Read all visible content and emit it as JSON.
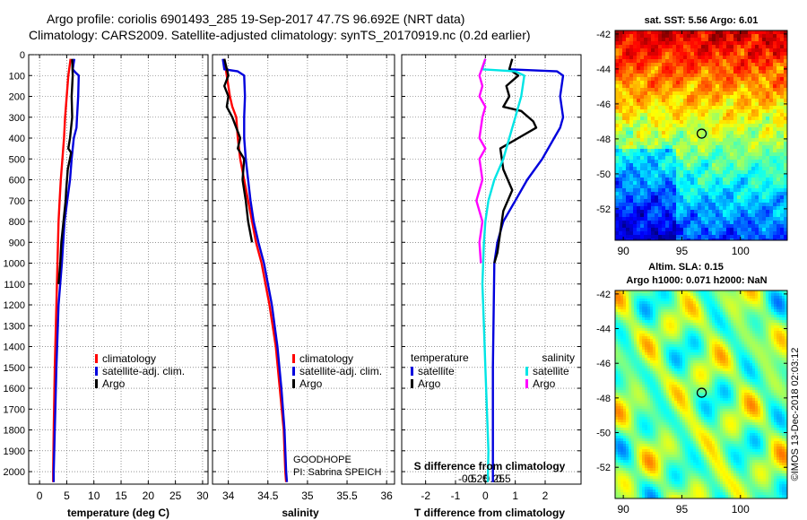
{
  "title": {
    "line1": "Argo profile: coriolis 6901493_285 19-Sep-2017 47.7S 96.692E (NRT data)",
    "line2": "Climatology: CARS2009. Satellite-adjusted climatology: synTS_20170919.nc (0.2d earlier)"
  },
  "colors": {
    "climatology": "#ff0000",
    "satellite": "#0000dd",
    "argo": "#000000",
    "sat_diff_salinity": "#00e5e5",
    "argo_diff_salinity": "#ff00ff"
  },
  "chart_data": [
    {
      "type": "line",
      "id": "temperature-panel",
      "xlabel": "temperature (deg C)",
      "ylabel": "",
      "xlim": [
        -2,
        31
      ],
      "ylim": [
        2060,
        0
      ],
      "xticks": [
        0,
        5,
        10,
        15,
        20,
        25,
        30
      ],
      "yticks": [
        0,
        100,
        200,
        300,
        400,
        500,
        600,
        700,
        800,
        900,
        1000,
        1100,
        1200,
        1300,
        1400,
        1500,
        1600,
        1700,
        1800,
        1900,
        2000
      ],
      "legend": [
        "climatology",
        "satellite-adj. clim.",
        "Argo"
      ],
      "series": [
        {
          "name": "climatology",
          "color": "#ff0000",
          "x": [
            5.7,
            5.3,
            5.0,
            4.7,
            4.5,
            4.2,
            3.9,
            3.7,
            3.5,
            3.3,
            3.1,
            2.8,
            2.6,
            2.5,
            2.5
          ],
          "y": [
            20,
            100,
            200,
            300,
            400,
            500,
            600,
            700,
            800,
            1000,
            1200,
            1500,
            1800,
            2000,
            2050
          ]
        },
        {
          "name": "satellite-adj. clim.",
          "color": "#0000dd",
          "x": [
            6.4,
            6.1,
            6.6,
            7.2,
            7.1,
            6.9,
            6.8,
            6.3,
            5.9,
            5.6,
            5.1,
            4.6,
            4.1,
            3.5,
            3.1,
            2.8,
            2.6,
            2.6
          ],
          "y": [
            20,
            70,
            85,
            100,
            200,
            300,
            350,
            400,
            500,
            600,
            700,
            800,
            1000,
            1200,
            1500,
            1800,
            2000,
            2050
          ]
        },
        {
          "name": "Argo",
          "color": "#000000",
          "x": [
            6.0,
            6.1,
            5.9,
            6.0,
            5.8,
            5.6,
            5.3,
            5.8,
            5.2,
            4.9,
            4.8,
            4.4,
            4.0,
            3.8,
            3.5
          ],
          "y": [
            20,
            100,
            200,
            300,
            350,
            400,
            450,
            470,
            550,
            650,
            700,
            800,
            900,
            1000,
            1100
          ]
        }
      ]
    },
    {
      "type": "line",
      "id": "salinity-panel",
      "xlabel": "salinity",
      "ylabel": "",
      "xlim": [
        33.8,
        36.1
      ],
      "ylim": [
        2060,
        0
      ],
      "xticks": [
        34,
        34.5,
        35,
        35.5,
        36
      ],
      "xtick_labels": [
        "34",
        "34.5",
        "35",
        "35.5",
        "36"
      ],
      "legend": [
        "climatology",
        "satellite-adj. clim.",
        "Argo"
      ],
      "annotations": [
        "GOODHOPE",
        "PI: Sabrina SPEICH"
      ],
      "series": [
        {
          "name": "climatology",
          "color": "#ff0000",
          "x": [
            33.95,
            33.98,
            34.02,
            34.05,
            34.1,
            34.12,
            34.15,
            34.2,
            34.25,
            34.3,
            34.35,
            34.42,
            34.52,
            34.6,
            34.65,
            34.7,
            34.72,
            34.73
          ],
          "y": [
            20,
            100,
            200,
            250,
            300,
            400,
            500,
            600,
            700,
            800,
            900,
            1000,
            1200,
            1400,
            1600,
            1800,
            2000,
            2050
          ]
        },
        {
          "name": "satellite-adj. clim.",
          "color": "#0000dd",
          "x": [
            33.93,
            33.95,
            34.12,
            34.2,
            34.21,
            34.2,
            34.2,
            34.22,
            34.25,
            34.28,
            34.32,
            34.38,
            34.45,
            34.55,
            34.62,
            34.67,
            34.71,
            34.73,
            34.74
          ],
          "y": [
            20,
            70,
            80,
            100,
            200,
            300,
            400,
            500,
            600,
            700,
            800,
            900,
            1000,
            1200,
            1400,
            1600,
            1800,
            2000,
            2050
          ]
        },
        {
          "name": "Argo",
          "color": "#000000",
          "x": [
            33.95,
            34.0,
            33.95,
            34.0,
            33.98,
            34.05,
            34.1,
            34.15,
            34.12,
            34.2,
            34.18,
            34.22,
            34.25,
            34.3
          ],
          "y": [
            20,
            100,
            150,
            200,
            250,
            300,
            350,
            400,
            450,
            500,
            600,
            700,
            800,
            900
          ]
        }
      ]
    },
    {
      "type": "line",
      "id": "difference-panel",
      "xlabel": "T difference from climatology",
      "xlabel_top": "S difference from climatology",
      "xlim": [
        -2.8,
        3.2
      ],
      "ylim": [
        2060,
        0
      ],
      "xticks": [
        -2,
        -1,
        0,
        1,
        2
      ],
      "xtick_labels": [
        "-2",
        "-1",
        "0",
        "1",
        "2"
      ],
      "s_xticks": [
        -0.5,
        -0.25,
        0,
        0.25,
        0.5
      ],
      "s_xtick_labels": [
        "-0.5",
        "-0.25",
        "0",
        "0.25",
        "0.5"
      ],
      "legend_temperature_title": "temperature",
      "legend_salinity_title": "salinity",
      "legend_temperature": [
        "satellite",
        "Argo"
      ],
      "legend_salinity": [
        "satellite",
        "Argo"
      ],
      "series": [
        {
          "name": "temperature satellite",
          "color": "#0000dd",
          "x": [
            0.8,
            2.4,
            2.6,
            2.5,
            2.6,
            2.5,
            2.3,
            1.9,
            1.4,
            1.0,
            0.6,
            0.4,
            0.3,
            0.25,
            0.25
          ],
          "y": [
            70,
            80,
            100,
            200,
            300,
            350,
            400,
            500,
            600,
            700,
            800,
            900,
            1000,
            1500,
            2050
          ]
        },
        {
          "name": "temperature Argo",
          "color": "#000000",
          "x": [
            0.9,
            0.8,
            1.1,
            0.7,
            0.8,
            0.6,
            1.2,
            1.6,
            1.7,
            1.1,
            0.5,
            0.6,
            0.9,
            0.6,
            0.5,
            0.4,
            0.3
          ],
          "y": [
            20,
            70,
            100,
            150,
            200,
            250,
            270,
            320,
            350,
            400,
            450,
            550,
            650,
            750,
            850,
            950,
            1000
          ]
        },
        {
          "name": "salinity satellite",
          "color": "#00e5e5",
          "x": [
            0.0,
            -0.1,
            1.0,
            1.3,
            1.2,
            1.0,
            0.8,
            0.6,
            0.3,
            0.1,
            0.0,
            -0.05,
            -0.1,
            -0.05,
            0.0,
            0.05,
            0.1,
            0.08
          ],
          "y": [
            20,
            70,
            80,
            100,
            200,
            300,
            400,
            500,
            600,
            700,
            800,
            900,
            1100,
            1300,
            1500,
            1700,
            1900,
            2050
          ]
        },
        {
          "name": "salinity Argo",
          "color": "#ff00ff",
          "x": [
            0.0,
            -0.2,
            -0.1,
            -0.2,
            0.0,
            -0.1,
            -0.2,
            0.0,
            -0.2,
            -0.1,
            -0.3,
            -0.1,
            -0.2,
            -0.15
          ],
          "y": [
            20,
            100,
            150,
            200,
            250,
            300,
            400,
            450,
            500,
            600,
            700,
            800,
            900,
            1000
          ]
        }
      ]
    },
    {
      "type": "heatmap",
      "id": "sst-map",
      "title": "sat. SST: 5.56 Argo: 6.01",
      "xlim": [
        89.3,
        104
      ],
      "ylim": [
        -53.8,
        -41.8
      ],
      "xticks": [
        90,
        95,
        100
      ],
      "yticks": [
        -42,
        -44,
        -46,
        -48,
        -50,
        -52
      ],
      "float_lon": 96.692,
      "float_lat": -47.7
    },
    {
      "type": "heatmap",
      "id": "sla-map",
      "title_line1": "Altim. SLA: 0.15",
      "title_line2": "Argo h1000: 0.071 h2000: NaN",
      "xlim": [
        89.3,
        104
      ],
      "ylim": [
        -53.8,
        -41.8
      ],
      "xticks": [
        90,
        95,
        100
      ],
      "yticks": [
        -42,
        -44,
        -46,
        -48,
        -50,
        -52
      ],
      "float_lon": 96.692,
      "float_lat": -47.7
    }
  ],
  "footer": {
    "credit": "©IMOS 13-Dec-2018 02:03:12"
  }
}
